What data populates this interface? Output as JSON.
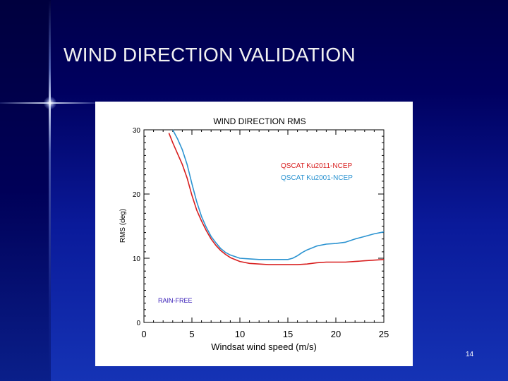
{
  "slide": {
    "title": "WIND DIRECTION VALIDATION",
    "page_number": "14"
  },
  "colors": {
    "background": "#0a1a9a",
    "title_text": "#f2f2f2",
    "series_ku2011": "#d81e1e",
    "series_ku2001": "#2b93d1",
    "rain_free_label": "#3a20b8"
  },
  "chart_data": {
    "type": "line",
    "title": "WIND DIRECTION RMS",
    "xlabel": "Windsat wind speed (m/s)",
    "ylabel": "RMS (deg)",
    "xlim": [
      0,
      25
    ],
    "ylim": [
      0,
      30
    ],
    "xticks": [
      0,
      5,
      10,
      15,
      20,
      25
    ],
    "yticks": [
      0,
      10,
      20,
      30
    ],
    "legend_position": "top-right",
    "annotation": "RAIN-FREE",
    "grid": false,
    "series": [
      {
        "name": "QSCAT Ku2011-NCEP",
        "color": "#d81e1e",
        "x": [
          2.6,
          3.0,
          3.5,
          4.0,
          4.5,
          5.0,
          5.5,
          6.0,
          6.5,
          7.0,
          7.5,
          8.0,
          8.5,
          9.0,
          10.0,
          11.0,
          12.0,
          13.0,
          14.0,
          15.0,
          16.0,
          17.0,
          18.0,
          19.0,
          20.0,
          21.0,
          22.0,
          23.0,
          24.0,
          25.0
        ],
        "y": [
          29.5,
          28.0,
          26.3,
          24.6,
          22.5,
          19.8,
          17.5,
          15.8,
          14.3,
          13.0,
          12.0,
          11.2,
          10.6,
          10.1,
          9.5,
          9.2,
          9.1,
          9.0,
          9.0,
          9.0,
          9.0,
          9.1,
          9.3,
          9.4,
          9.4,
          9.4,
          9.5,
          9.6,
          9.7,
          9.8
        ]
      },
      {
        "name": "QSCAT Ku2001-NCEP",
        "color": "#2b93d1",
        "x": [
          3.0,
          3.5,
          4.0,
          4.5,
          5.0,
          5.5,
          6.0,
          6.5,
          7.0,
          7.5,
          8.0,
          8.5,
          9.0,
          10.0,
          11.0,
          12.0,
          13.0,
          14.0,
          15.0,
          15.5,
          16.0,
          16.5,
          17.0,
          18.0,
          19.0,
          20.0,
          21.0,
          22.0,
          23.0,
          24.0,
          25.0
        ],
        "y": [
          30.0,
          28.6,
          26.9,
          24.6,
          21.6,
          18.8,
          16.5,
          14.8,
          13.4,
          12.4,
          11.5,
          10.9,
          10.5,
          10.0,
          9.9,
          9.8,
          9.8,
          9.8,
          9.8,
          10.0,
          10.4,
          10.9,
          11.3,
          11.9,
          12.2,
          12.3,
          12.5,
          13.0,
          13.4,
          13.8,
          14.1
        ]
      }
    ]
  }
}
